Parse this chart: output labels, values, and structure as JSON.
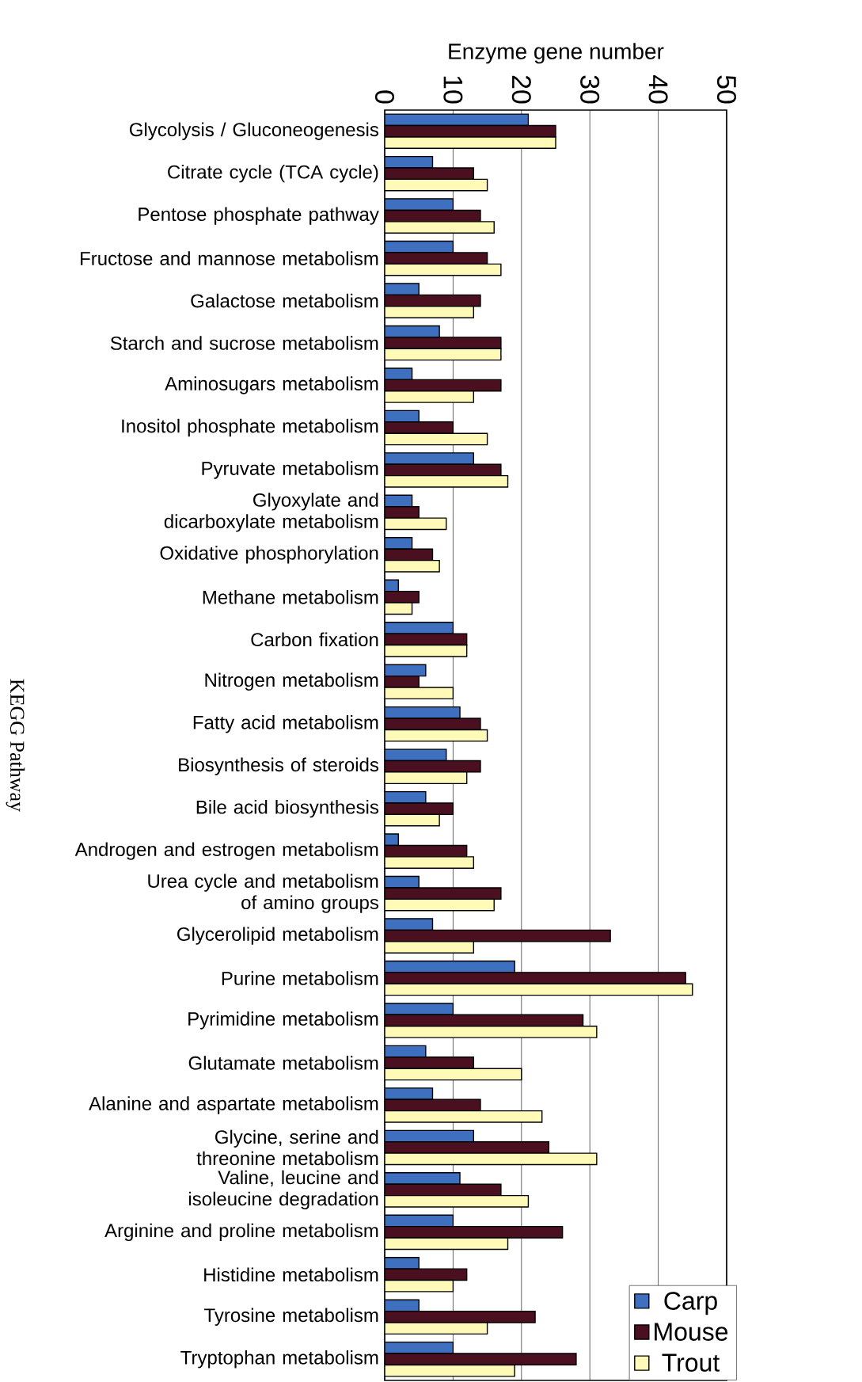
{
  "chart_data": {
    "type": "bar",
    "orientation": "horizontal",
    "xlabel": "Enzyme gene number",
    "ylabel": "KEGG Pathway",
    "categories": [
      "Glycolysis / Gluconeogenesis",
      "Citrate cycle (TCA cycle)",
      "Pentose phosphate pathway",
      "Fructose and mannose metabolism",
      "Galactose metabolism",
      "Starch and sucrose metabolism",
      "Aminosugars metabolism",
      "Inositol phosphate metabolism",
      "Pyruvate metabolism",
      "Glyoxylate and dicarboxylate metabolism",
      "Oxidative phosphorylation",
      "Methane metabolism",
      "Carbon fixation",
      "Nitrogen metabolism",
      "Fatty acid metabolism",
      "Biosynthesis of steroids",
      "Bile acid biosynthesis",
      "Androgen and estrogen metabolism",
      "Urea cycle and metabolism of amino groups",
      "Glycerolipid metabolism",
      "Purine metabolism",
      "Pyrimidine metabolism",
      "Glutamate metabolism",
      "Alanine and aspartate metabolism",
      "Glycine, serine and threonine metabolism",
      "Valine, leucine and isoleucine degradation",
      "Arginine and proline metabolism",
      "Histidine metabolism",
      "Tyrosine metabolism",
      "Tryptophan metabolism"
    ],
    "series": [
      {
        "name": "Carp",
        "color": "#3f6fbf",
        "values": [
          21,
          7,
          10,
          10,
          5,
          8,
          4,
          5,
          13,
          4,
          4,
          2,
          10,
          6,
          11,
          9,
          6,
          2,
          5,
          7,
          19,
          10,
          6,
          7,
          13,
          11,
          10,
          5,
          5,
          10
        ]
      },
      {
        "name": "Mouse",
        "color": "#4a1020",
        "values": [
          25,
          13,
          14,
          15,
          14,
          17,
          17,
          10,
          17,
          5,
          7,
          5,
          12,
          5,
          14,
          14,
          10,
          12,
          17,
          33,
          44,
          29,
          13,
          14,
          24,
          17,
          26,
          12,
          22,
          28
        ]
      },
      {
        "name": "Trout",
        "color": "#fffab8",
        "values": [
          25,
          15,
          16,
          17,
          13,
          17,
          13,
          15,
          18,
          9,
          8,
          4,
          12,
          10,
          15,
          12,
          8,
          13,
          16,
          13,
          45,
          31,
          20,
          23,
          31,
          21,
          18,
          10,
          15,
          19
        ]
      }
    ],
    "xlim": [
      0,
      50
    ],
    "xticks": [
      0,
      10,
      20,
      30,
      40,
      50
    ],
    "grid": "x",
    "legend": "bottom right"
  }
}
